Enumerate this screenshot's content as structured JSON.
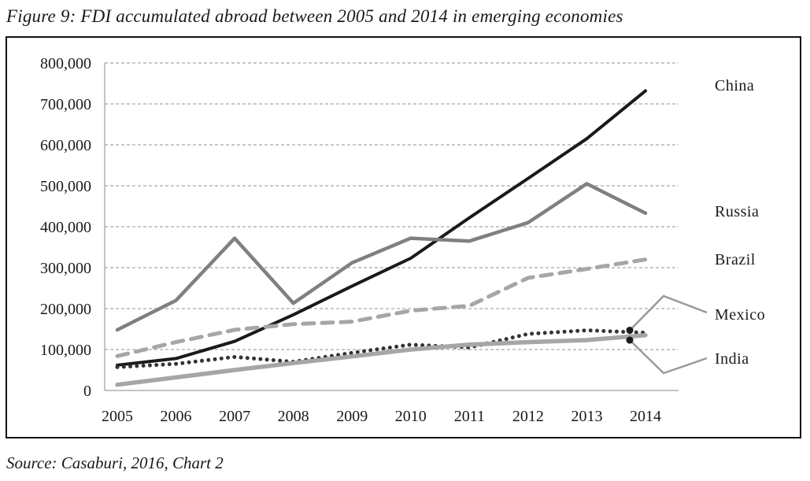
{
  "title": "Figure 9: FDI accumulated abroad between 2005 and 2014 in emerging economies",
  "source": "Source: Casaburi, 2016, Chart 2",
  "chart_data": {
    "type": "line",
    "title": "Figure 9: FDI accumulated abroad between 2005 and 2014 in emerging economies",
    "xlabel": "",
    "ylabel": "",
    "x": [
      "2005",
      "2006",
      "2007",
      "2008",
      "2009",
      "2010",
      "2011",
      "2012",
      "2013",
      "2014"
    ],
    "ylim": [
      0,
      800000
    ],
    "yticks": [
      0,
      100000,
      200000,
      300000,
      400000,
      500000,
      600000,
      700000,
      800000
    ],
    "ytick_labels": [
      "0",
      "100,000",
      "200,000",
      "300,000",
      "400,000",
      "500,000",
      "600,000",
      "700,000",
      "800,000"
    ],
    "grid": true,
    "legend": "direct labels on right",
    "series": [
      {
        "name": "China",
        "style": "solid",
        "color": "#1a1a1a",
        "values": [
          62000,
          78000,
          120000,
          185000,
          255000,
          323000,
          422000,
          518000,
          615000,
          732000
        ]
      },
      {
        "name": "Russia",
        "style": "solid",
        "color": "#808080",
        "values": [
          148000,
          220000,
          372000,
          213000,
          312000,
          372000,
          365000,
          410000,
          505000,
          433000
        ]
      },
      {
        "name": "Brazil",
        "style": "dashed",
        "color": "#a6a6a6",
        "values": [
          84000,
          118000,
          148000,
          162000,
          168000,
          195000,
          207000,
          275000,
          297000,
          320000
        ]
      },
      {
        "name": "Mexico",
        "style": "dotted",
        "color": "#333333",
        "values": [
          57000,
          65000,
          82000,
          70000,
          92000,
          112000,
          105000,
          138000,
          147000,
          141000
        ]
      },
      {
        "name": "India",
        "style": "solid",
        "color": "#a6a6a6",
        "values": [
          14000,
          32000,
          50000,
          67000,
          83000,
          100000,
          112000,
          118000,
          123000,
          135000
        ]
      }
    ]
  }
}
